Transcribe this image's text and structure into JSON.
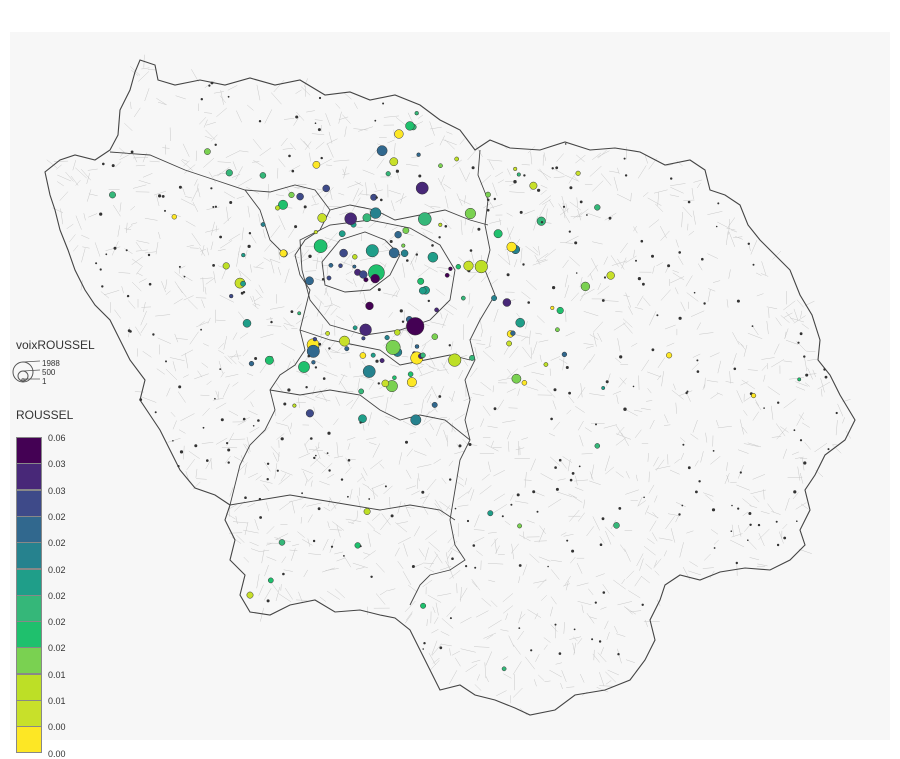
{
  "map": {
    "region": "Île-de-France",
    "map_type": "proportional-symbol choropleth",
    "background_color": "#f7f7f7",
    "commune_border_color": "#c8c8c8",
    "department_border_color": "#444444"
  },
  "size_legend": {
    "title": "voixROUSSEL",
    "values": [
      "1988",
      "500",
      "1"
    ]
  },
  "color_legend": {
    "title": "ROUSSEL",
    "classes": [
      {
        "label": "0.06",
        "color": "#440154"
      },
      {
        "label": "0.03",
        "color": "#482878"
      },
      {
        "label": "0.03",
        "color": "#3e4a89"
      },
      {
        "label": "0.02",
        "color": "#31688e"
      },
      {
        "label": "0.02",
        "color": "#26828e"
      },
      {
        "label": "0.02",
        "color": "#1f9e89"
      },
      {
        "label": "0.02",
        "color": "#35b779"
      },
      {
        "label": "0.02",
        "color": "#1fc06d"
      },
      {
        "label": "0.02",
        "color": "#7ad151"
      },
      {
        "label": "0.01",
        "color": "#bddf26"
      },
      {
        "label": "0.01",
        "color": "#c8e02a"
      },
      {
        "label": "0.00",
        "color": "#fde725"
      }
    ]
  },
  "chart_data": {
    "type": "scatter",
    "title": "",
    "size_variable": "voixROUSSEL",
    "color_variable": "ROUSSEL",
    "size_range": [
      1,
      1988
    ],
    "color_range": [
      0.0,
      0.06
    ]
  }
}
